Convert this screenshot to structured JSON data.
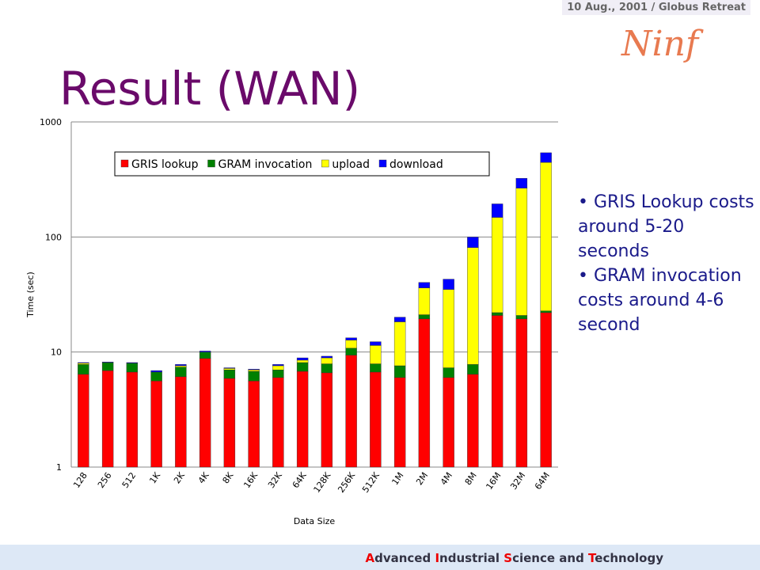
{
  "header": {
    "date": "10  Aug., 2001 / Globus Retreat",
    "logo": "Ninf",
    "title": "Result (WAN)"
  },
  "bullets": [
    "GRIS Lookup costs around 5-20 seconds",
    "GRAM invocation costs around 4-6 second"
  ],
  "footer": [
    {
      "initial": "A",
      "rest": "dvanced"
    },
    {
      "initial": "I",
      "rest": "ndustrial"
    },
    {
      "initial": "S",
      "rest": "cience and"
    },
    {
      "initial": "T",
      "rest": "echnology"
    }
  ],
  "chart_data": {
    "type": "stacked_bar",
    "x_label": "Data Size",
    "y_label": "Time (sec)",
    "log_scale": true,
    "grid": true,
    "ylim": [
      1,
      1000
    ],
    "yticks": [
      1,
      10,
      100,
      1000
    ],
    "categories": [
      "128",
      "256",
      "512",
      "1K",
      "2K",
      "4K",
      "8K",
      "16K",
      "32K",
      "64K",
      "128K",
      "256K",
      "512K",
      "1M",
      "2M",
      "4M",
      "8M",
      "16M",
      "32M",
      "64M"
    ],
    "series": [
      {
        "name": "GRIS lookup",
        "color": "#ff0000",
        "values": [
          6.4,
          6.9,
          6.7,
          5.6,
          6.1,
          8.8,
          5.9,
          5.6,
          6.0,
          6.8,
          6.6,
          9.4,
          6.7,
          6.0,
          19.4,
          6.0,
          6.4,
          20.8,
          19.4,
          22
        ]
      },
      {
        "name": "GRAM invocation",
        "color": "#008000",
        "values": [
          1.4,
          1.2,
          1.3,
          1.1,
          1.3,
          1.2,
          1.1,
          1.2,
          1.0,
          1.3,
          1.3,
          1.4,
          1.2,
          1.6,
          1.7,
          1.3,
          1.4,
          1.2,
          1.4,
          0.8
        ]
      },
      {
        "name": "upload",
        "color": "#ffff00",
        "values": [
          0.2,
          0,
          0,
          0,
          0.2,
          0,
          0.2,
          0.2,
          0.6,
          0.4,
          1.0,
          1.9,
          3.5,
          10.7,
          15,
          27.7,
          73,
          126,
          245,
          422
        ]
      },
      {
        "name": "download",
        "color": "#0000ff",
        "values": [
          0.1,
          0.1,
          0.1,
          0.2,
          0.2,
          0.2,
          0.1,
          0.1,
          0.2,
          0.4,
          0.3,
          0.6,
          0.9,
          1.8,
          4.2,
          8,
          19,
          46,
          58,
          95
        ]
      }
    ]
  }
}
